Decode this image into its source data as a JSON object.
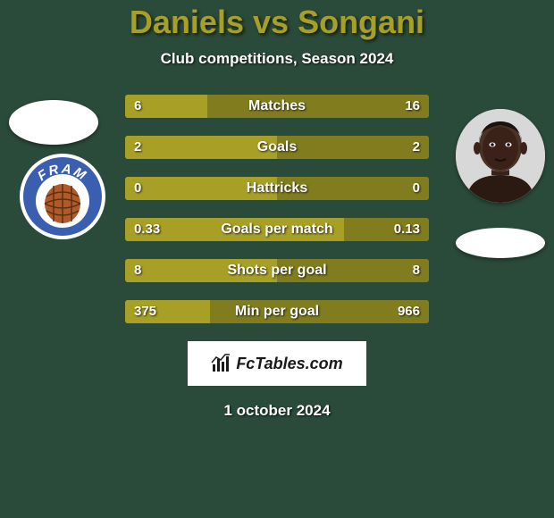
{
  "background_color": "#2a4a3a",
  "title": {
    "player1": "Daniels",
    "vs": "vs",
    "player2": "Songani",
    "color": "#a8a026",
    "fontsize": 36
  },
  "subtitle": "Club competitions, Season 2024",
  "stats": [
    {
      "label": "Matches",
      "left_val": "6",
      "right_val": "16",
      "left_pct": 27,
      "right_pct": 73
    },
    {
      "label": "Goals",
      "left_val": "2",
      "right_val": "2",
      "left_pct": 50,
      "right_pct": 50
    },
    {
      "label": "Hattricks",
      "left_val": "0",
      "right_val": "0",
      "left_pct": 50,
      "right_pct": 50
    },
    {
      "label": "Goals per match",
      "left_val": "0.33",
      "right_val": "0.13",
      "left_pct": 72,
      "right_pct": 28
    },
    {
      "label": "Shots per goal",
      "left_val": "8",
      "right_val": "8",
      "left_pct": 50,
      "right_pct": 50
    },
    {
      "label": "Min per goal",
      "left_val": "375",
      "right_val": "966",
      "left_pct": 28,
      "right_pct": 72
    }
  ],
  "bar_colors": {
    "left_fill": "#a8a026",
    "right_fill": "#817d1f",
    "background": "#6b6818"
  },
  "footer_logo": "FcTables.com",
  "date": "1 october 2024",
  "badge_left": {
    "primary": "#3a5fb0",
    "secondary": "#ffffff",
    "accent": "#b05a2a",
    "text": "FRAM"
  }
}
